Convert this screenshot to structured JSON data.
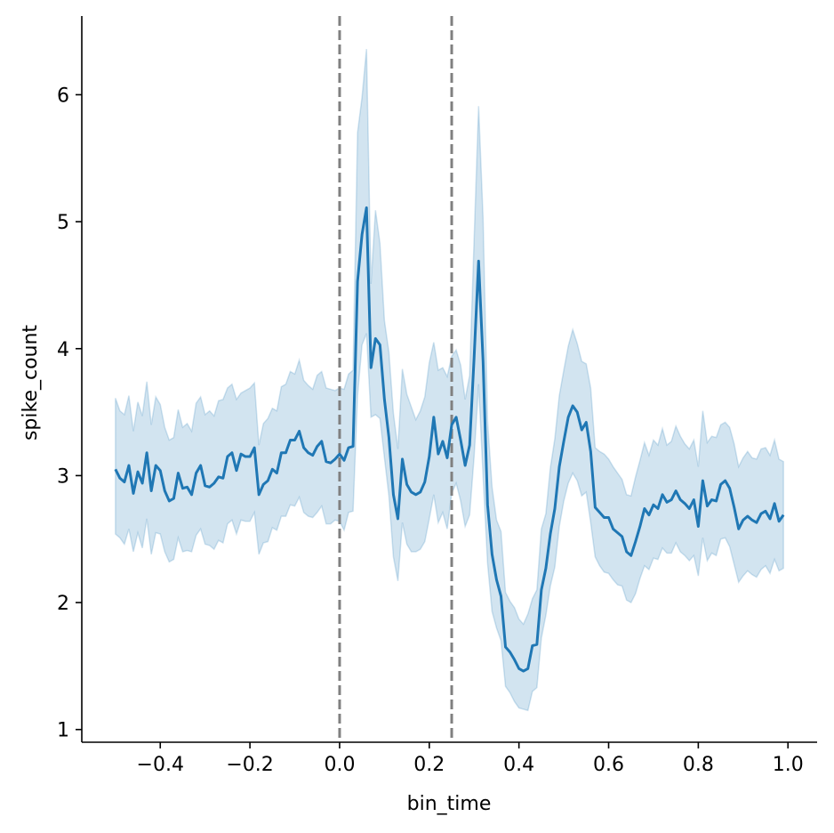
{
  "chart_data": {
    "type": "line",
    "title": "",
    "xlabel": "bin_time",
    "ylabel": "spike_count",
    "xlim": [
      -0.575,
      1.065
    ],
    "ylim": [
      0.9,
      6.62
    ],
    "xticks": [
      -0.4,
      -0.2,
      0.0,
      0.2,
      0.4,
      0.6,
      0.8,
      1.0
    ],
    "xtick_labels": [
      "−0.4",
      "−0.2",
      "0.0",
      "0.2",
      "0.4",
      "0.6",
      "0.8",
      "1.0"
    ],
    "yticks": [
      1,
      2,
      3,
      4,
      5,
      6
    ],
    "ytick_labels": [
      "1",
      "2",
      "3",
      "4",
      "5",
      "6"
    ],
    "grid": false,
    "vlines": [
      0.0,
      0.25
    ],
    "colors": {
      "line": "#1f77b4",
      "band": "#1f77b4",
      "vline": "#808080"
    },
    "series": [
      {
        "x": [
          -0.5,
          -0.49,
          -0.48,
          -0.47,
          -0.46,
          -0.45,
          -0.44,
          -0.43,
          -0.42,
          -0.41,
          -0.4,
          -0.39,
          -0.38,
          -0.37,
          -0.36,
          -0.35,
          -0.34,
          -0.33,
          -0.32,
          -0.31,
          -0.3,
          -0.29,
          -0.28,
          -0.27,
          -0.26,
          -0.25,
          -0.24,
          -0.23,
          -0.22,
          -0.21,
          -0.2,
          -0.19,
          -0.18,
          -0.17,
          -0.16,
          -0.15,
          -0.14,
          -0.13,
          -0.12,
          -0.11,
          -0.1,
          -0.09,
          -0.08,
          -0.07,
          -0.06,
          -0.05,
          -0.04,
          -0.03,
          -0.02,
          -0.01,
          0.0,
          0.01,
          0.02,
          0.03,
          0.04,
          0.05,
          0.06,
          0.07,
          0.08,
          0.09,
          0.1,
          0.11,
          0.12,
          0.13,
          0.14,
          0.15,
          0.16,
          0.17,
          0.18,
          0.19,
          0.2,
          0.21,
          0.22,
          0.23,
          0.24,
          0.25,
          0.26,
          0.27,
          0.28,
          0.29,
          0.3,
          0.31,
          0.32,
          0.33,
          0.34,
          0.35,
          0.36,
          0.37,
          0.38,
          0.39,
          0.4,
          0.41,
          0.42,
          0.43,
          0.44,
          0.45,
          0.46,
          0.47,
          0.48,
          0.49,
          0.5,
          0.51,
          0.52,
          0.53,
          0.54,
          0.55,
          0.56,
          0.57,
          0.58,
          0.59,
          0.6,
          0.61,
          0.62,
          0.63,
          0.64,
          0.65,
          0.66,
          0.67,
          0.68,
          0.69,
          0.7,
          0.71,
          0.72,
          0.73,
          0.74,
          0.75,
          0.76,
          0.77,
          0.78,
          0.79,
          0.8,
          0.81,
          0.82,
          0.83,
          0.84,
          0.85,
          0.86,
          0.87,
          0.88,
          0.89,
          0.9,
          0.91,
          0.92,
          0.93,
          0.94,
          0.95,
          0.96,
          0.97,
          0.98,
          0.99
        ],
        "y": [
          3.05,
          2.98,
          2.95,
          3.08,
          2.86,
          3.03,
          2.94,
          3.18,
          2.88,
          3.08,
          3.04,
          2.88,
          2.8,
          2.82,
          3.02,
          2.9,
          2.91,
          2.85,
          3.02,
          3.08,
          2.92,
          2.91,
          2.94,
          2.99,
          2.98,
          3.15,
          3.18,
          3.04,
          3.17,
          3.15,
          3.15,
          3.22,
          2.85,
          2.93,
          2.96,
          3.05,
          3.02,
          3.18,
          3.18,
          3.28,
          3.28,
          3.35,
          3.22,
          3.18,
          3.16,
          3.23,
          3.27,
          3.11,
          3.1,
          3.13,
          3.17,
          3.12,
          3.22,
          3.23,
          4.53,
          4.9,
          5.11,
          3.85,
          4.08,
          4.03,
          3.6,
          3.3,
          2.85,
          2.66,
          3.13,
          2.93,
          2.87,
          2.85,
          2.87,
          2.95,
          3.15,
          3.46,
          3.17,
          3.27,
          3.14,
          3.4,
          3.46,
          3.28,
          3.08,
          3.24,
          3.93,
          4.69,
          3.9,
          2.77,
          2.38,
          2.18,
          2.05,
          1.65,
          1.61,
          1.55,
          1.48,
          1.46,
          1.48,
          1.66,
          1.67,
          2.1,
          2.27,
          2.54,
          2.74,
          3.07,
          3.27,
          3.46,
          3.55,
          3.5,
          3.36,
          3.42,
          3.19,
          2.75,
          2.71,
          2.67,
          2.67,
          2.58,
          2.55,
          2.52,
          2.4,
          2.37,
          2.48,
          2.6,
          2.74,
          2.69,
          2.77,
          2.74,
          2.85,
          2.79,
          2.81,
          2.88,
          2.81,
          2.78,
          2.74,
          2.81,
          2.6,
          2.96,
          2.76,
          2.81,
          2.8,
          2.93,
          2.96,
          2.9,
          2.75,
          2.58,
          2.65,
          2.68,
          2.65,
          2.63,
          2.7,
          2.72,
          2.66,
          2.78,
          2.64,
          2.69
        ],
        "ci_upper": [
          3.61,
          3.51,
          3.48,
          3.63,
          3.35,
          3.58,
          3.47,
          3.74,
          3.4,
          3.62,
          3.56,
          3.38,
          3.28,
          3.3,
          3.52,
          3.38,
          3.41,
          3.35,
          3.57,
          3.62,
          3.48,
          3.51,
          3.47,
          3.59,
          3.6,
          3.69,
          3.72,
          3.6,
          3.65,
          3.67,
          3.69,
          3.73,
          3.24,
          3.41,
          3.45,
          3.53,
          3.51,
          3.7,
          3.72,
          3.82,
          3.8,
          3.91,
          3.75,
          3.71,
          3.68,
          3.79,
          3.82,
          3.69,
          3.68,
          3.67,
          3.69,
          3.68,
          3.8,
          3.83,
          5.7,
          5.98,
          6.36,
          4.51,
          5.09,
          4.83,
          4.22,
          3.97,
          3.49,
          3.21,
          3.84,
          3.64,
          3.54,
          3.44,
          3.51,
          3.62,
          3.89,
          4.05,
          3.83,
          3.85,
          3.78,
          3.94,
          3.99,
          3.87,
          3.6,
          3.79,
          4.86,
          5.91,
          5.03,
          3.43,
          2.91,
          2.65,
          2.56,
          2.08,
          2.01,
          1.96,
          1.87,
          1.83,
          1.91,
          2.03,
          2.1,
          2.58,
          2.7,
          3.06,
          3.29,
          3.63,
          3.83,
          4.02,
          4.15,
          4.04,
          3.9,
          3.88,
          3.69,
          3.22,
          3.19,
          3.17,
          3.13,
          3.07,
          3.02,
          2.97,
          2.85,
          2.84,
          2.99,
          3.12,
          3.26,
          3.16,
          3.28,
          3.24,
          3.37,
          3.24,
          3.27,
          3.39,
          3.31,
          3.25,
          3.21,
          3.28,
          3.07,
          3.51,
          3.26,
          3.31,
          3.3,
          3.4,
          3.42,
          3.38,
          3.25,
          3.07,
          3.14,
          3.19,
          3.14,
          3.13,
          3.21,
          3.22,
          3.16,
          3.28,
          3.13,
          3.11
        ],
        "ci_lower": [
          2.54,
          2.51,
          2.46,
          2.58,
          2.4,
          2.55,
          2.43,
          2.66,
          2.38,
          2.55,
          2.54,
          2.4,
          2.32,
          2.34,
          2.51,
          2.4,
          2.41,
          2.4,
          2.53,
          2.58,
          2.46,
          2.45,
          2.42,
          2.49,
          2.47,
          2.62,
          2.65,
          2.54,
          2.65,
          2.64,
          2.64,
          2.71,
          2.38,
          2.47,
          2.48,
          2.59,
          2.57,
          2.68,
          2.68,
          2.77,
          2.76,
          2.83,
          2.71,
          2.68,
          2.67,
          2.71,
          2.76,
          2.62,
          2.62,
          2.65,
          2.64,
          2.57,
          2.71,
          2.72,
          3.63,
          4.03,
          4.12,
          3.46,
          3.48,
          3.45,
          3.14,
          2.84,
          2.36,
          2.17,
          2.63,
          2.46,
          2.4,
          2.4,
          2.42,
          2.48,
          2.66,
          2.85,
          2.63,
          2.71,
          2.58,
          2.86,
          2.94,
          2.8,
          2.6,
          2.69,
          3.15,
          3.72,
          3.0,
          2.31,
          1.93,
          1.8,
          1.7,
          1.34,
          1.29,
          1.22,
          1.17,
          1.16,
          1.15,
          1.3,
          1.33,
          1.72,
          1.9,
          2.13,
          2.28,
          2.6,
          2.8,
          2.94,
          3.02,
          2.96,
          2.84,
          2.87,
          2.63,
          2.36,
          2.29,
          2.24,
          2.23,
          2.18,
          2.14,
          2.13,
          2.02,
          2.0,
          2.07,
          2.19,
          2.29,
          2.26,
          2.35,
          2.34,
          2.43,
          2.39,
          2.39,
          2.47,
          2.4,
          2.37,
          2.33,
          2.37,
          2.21,
          2.51,
          2.33,
          2.39,
          2.37,
          2.5,
          2.51,
          2.44,
          2.3,
          2.16,
          2.21,
          2.25,
          2.22,
          2.2,
          2.26,
          2.29,
          2.23,
          2.34,
          2.25,
          2.27
        ]
      }
    ]
  }
}
